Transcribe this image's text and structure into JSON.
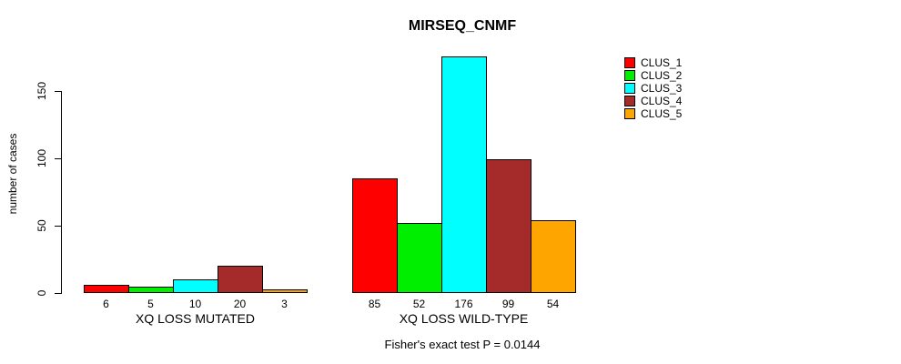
{
  "chart_data": {
    "type": "bar",
    "title": "MIRSEQ_CNMF",
    "ylabel": "number of cases",
    "xlabel": "",
    "categories": [
      "XQ LOSS MUTATED",
      "XQ LOSS WILD-TYPE"
    ],
    "series": [
      {
        "name": "CLUS_1",
        "color": "#ff0000",
        "values": [
          6,
          85
        ]
      },
      {
        "name": "CLUS_2",
        "color": "#00ee00",
        "values": [
          5,
          52
        ]
      },
      {
        "name": "CLUS_3",
        "color": "#00ffff",
        "values": [
          10,
          176
        ]
      },
      {
        "name": "CLUS_4",
        "color": "#a52a2a",
        "values": [
          20,
          99
        ]
      },
      {
        "name": "CLUS_5",
        "color": "#ffa500",
        "values": [
          3,
          54
        ]
      }
    ],
    "yticks": [
      0,
      50,
      100,
      150
    ],
    "ylim": [
      0,
      176
    ],
    "grid": false,
    "legend_position": "top-right",
    "value_labels_under_bars": true,
    "annotation": "Fisher's exact test P = 0.0144"
  }
}
